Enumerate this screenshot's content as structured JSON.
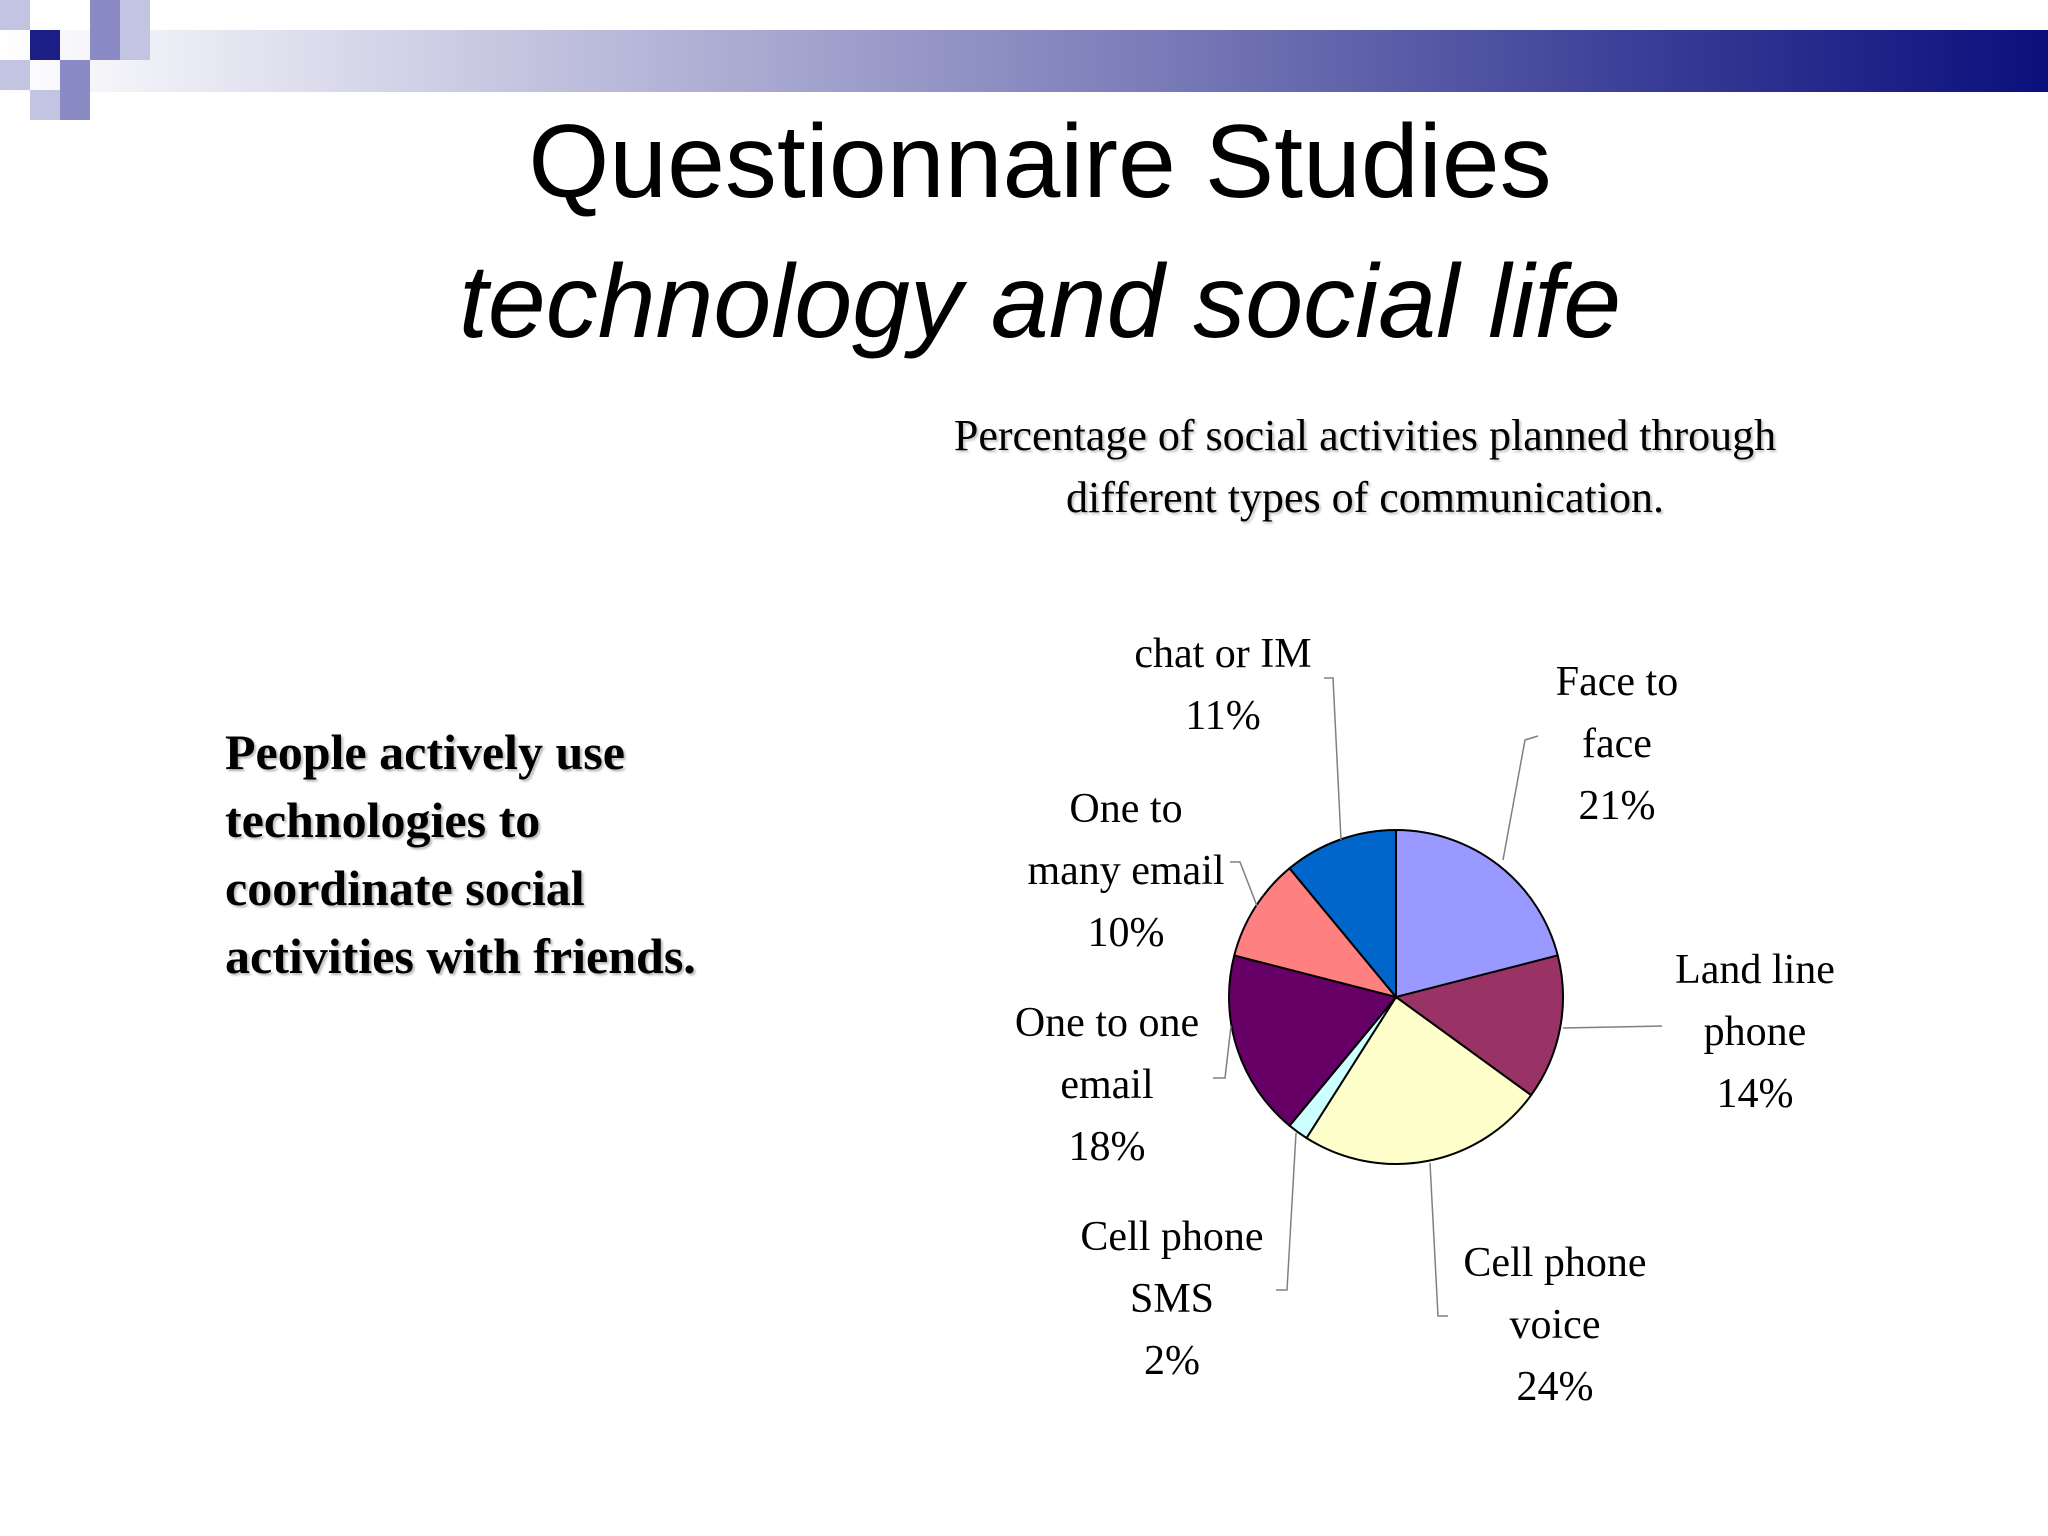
{
  "slide": {
    "title": "Questionnaire Studies",
    "subtitle": "technology and social life",
    "bullet": "People actively use technologies to coordinate social activities with friends."
  },
  "chart_data": {
    "type": "pie",
    "title": "Percentage of social activities planned through different types of communication.",
    "legend": "none",
    "slices": [
      {
        "label": "Face to face",
        "value": 21,
        "display": "21%",
        "color": "#9999ff"
      },
      {
        "label": "Land line phone",
        "value": 14,
        "display": "14%",
        "color": "#993366"
      },
      {
        "label": "Cell phone voice",
        "value": 24,
        "display": "24%",
        "color": "#ffffcc"
      },
      {
        "label": "Cell phone SMS",
        "value": 2,
        "display": "2%",
        "color": "#ccffff"
      },
      {
        "label": "One to one email",
        "value": 18,
        "display": "18%",
        "color": "#660066"
      },
      {
        "label": "One to many email",
        "value": 10,
        "display": "10%",
        "color": "#ff8080"
      },
      {
        "label": "chat or IM",
        "value": 11,
        "display": "11%",
        "color": "#0066cc"
      }
    ]
  }
}
